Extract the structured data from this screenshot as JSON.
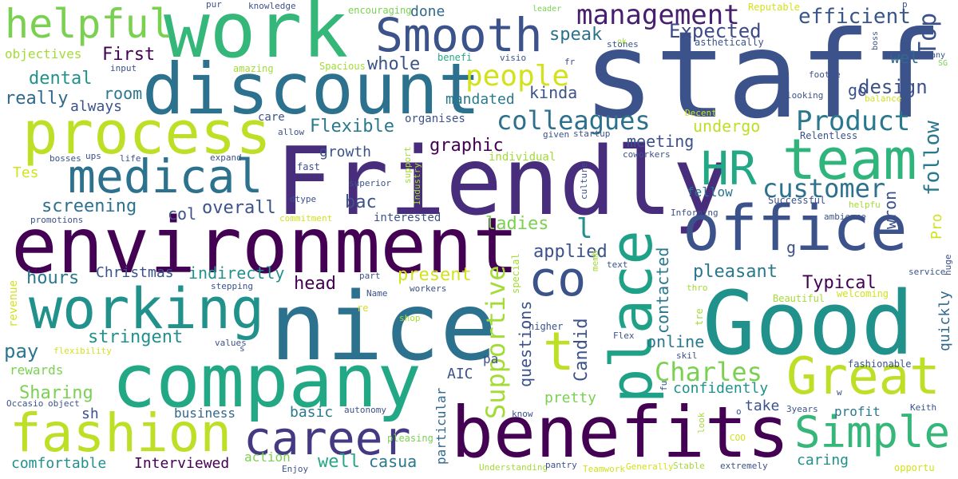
{
  "words": [
    {
      "text": "staff",
      "color": "#3b528b"
    },
    {
      "text": "Friendly",
      "color": "#472d7b"
    },
    {
      "text": "nice",
      "color": "#2c728e"
    },
    {
      "text": "environment",
      "color": "#440154"
    },
    {
      "text": "company",
      "color": "#22a884"
    },
    {
      "text": "work",
      "color": "#35b779"
    },
    {
      "text": "Good",
      "color": "#21918c"
    },
    {
      "text": "discount",
      "color": "#2c728e"
    },
    {
      "text": "benefits",
      "color": "#440154"
    },
    {
      "text": "office",
      "color": "#3b528b"
    },
    {
      "text": "process",
      "color": "#bddf26"
    },
    {
      "text": "fashion",
      "color": "#bddf26"
    },
    {
      "text": "working",
      "color": "#21918c"
    },
    {
      "text": "place",
      "color": "#1fa188"
    },
    {
      "text": "team",
      "color": "#2fb47c"
    },
    {
      "text": "Great",
      "color": "#bddf26"
    },
    {
      "text": "Smooth",
      "color": "#3b528b"
    },
    {
      "text": "career",
      "color": "#443a83"
    },
    {
      "text": "medical",
      "color": "#2c728e"
    },
    {
      "text": "co",
      "color": "#3b528b"
    },
    {
      "text": "Simple",
      "color": "#35b779"
    },
    {
      "text": "helpful",
      "color": "#7ad151"
    },
    {
      "text": "HR",
      "color": "#22a884"
    },
    {
      "text": "t",
      "color": "#bddf26"
    },
    {
      "text": "management",
      "color": "#481f70"
    },
    {
      "text": "Supportive",
      "color": "#a5db36"
    },
    {
      "text": "colleagues",
      "color": "#2d708e"
    },
    {
      "text": "Product",
      "color": "#2a788e"
    },
    {
      "text": "customer",
      "color": "#2c728e"
    },
    {
      "text": "people",
      "color": "#d2e21b"
    },
    {
      "text": "Charles",
      "color": "#7ad151"
    },
    {
      "text": "Top",
      "color": "#3b528b"
    },
    {
      "text": "follow",
      "color": "#2a788e"
    },
    {
      "text": "efficient",
      "color": "#39568c"
    },
    {
      "text": "Expected",
      "color": "#3e4989"
    },
    {
      "text": "speak",
      "color": "#2c728e"
    },
    {
      "text": "First",
      "color": "#440154"
    },
    {
      "text": "dental",
      "color": "#21918c"
    },
    {
      "text": "really",
      "color": "#31688e"
    },
    {
      "text": "room",
      "color": "#2a788e"
    },
    {
      "text": "always",
      "color": "#3b528b"
    },
    {
      "text": "objectives",
      "color": "#a5db36"
    },
    {
      "text": "whole",
      "color": "#3b528b"
    },
    {
      "text": "design",
      "color": "#3b528b"
    },
    {
      "text": "kinda",
      "color": "#3b528b"
    },
    {
      "text": "mandated",
      "color": "#2a788e"
    },
    {
      "text": "go",
      "color": "#3b528b"
    },
    {
      "text": "Flexible",
      "color": "#2a788e"
    },
    {
      "text": "graphic",
      "color": "#440154"
    },
    {
      "text": "meeting",
      "color": "#3b528b"
    },
    {
      "text": "undergo",
      "color": "#bddf26"
    },
    {
      "text": "growth",
      "color": "#3b528b"
    },
    {
      "text": "screening",
      "color": "#2c728e"
    },
    {
      "text": "overall",
      "color": "#3b528b"
    },
    {
      "text": "col",
      "color": "#3b528b"
    },
    {
      "text": "fellow",
      "color": "#2c728e"
    },
    {
      "text": "Tes",
      "color": "#d2e21b"
    },
    {
      "text": "bac",
      "color": "#3b528b"
    },
    {
      "text": "ladies",
      "color": "#7ad151"
    },
    {
      "text": "applied",
      "color": "#3b528b"
    },
    {
      "text": "Pro",
      "color": "#d2e21b"
    },
    {
      "text": "wron",
      "color": "#3b528b"
    },
    {
      "text": "pleasant",
      "color": "#2a788e"
    },
    {
      "text": "Typical",
      "color": "#440154"
    },
    {
      "text": "present",
      "color": "#d2e21b"
    },
    {
      "text": "head",
      "color": "#440154"
    },
    {
      "text": "indirectly",
      "color": "#21918c"
    },
    {
      "text": "hours",
      "color": "#2a788e"
    },
    {
      "text": "Christmas",
      "color": "#3b528b"
    },
    {
      "text": "stringent",
      "color": "#21918c"
    },
    {
      "text": "pay",
      "color": "#2a788e"
    },
    {
      "text": "Candid",
      "color": "#3b528b"
    },
    {
      "text": "contacted",
      "color": "#2a788e"
    },
    {
      "text": "quickly",
      "color": "#31688e"
    },
    {
      "text": "online",
      "color": "#2a788e"
    },
    {
      "text": "questions",
      "color": "#3b528b"
    },
    {
      "text": "confidently",
      "color": "#21918c"
    },
    {
      "text": "pretty",
      "color": "#7ad151"
    },
    {
      "text": "take",
      "color": "#3b528b"
    },
    {
      "text": "profit",
      "color": "#2a788e"
    },
    {
      "text": "Sharing",
      "color": "#7ad151"
    },
    {
      "text": "basic",
      "color": "#2a788e"
    },
    {
      "text": "business",
      "color": "#31688e"
    },
    {
      "text": "sh",
      "color": "#3b528b"
    },
    {
      "text": "AIC",
      "color": "#3b528b"
    },
    {
      "text": "pa",
      "color": "#3b528b"
    },
    {
      "text": "rewards",
      "color": "#7ad151"
    },
    {
      "text": "comfortable",
      "color": "#21918c"
    },
    {
      "text": "Interviewed",
      "color": "#440154"
    },
    {
      "text": "well",
      "color": "#22a884"
    },
    {
      "text": "casua",
      "color": "#2a788e"
    },
    {
      "text": "action",
      "color": "#7ad151"
    },
    {
      "text": "caring",
      "color": "#21918c"
    },
    {
      "text": "done",
      "color": "#31688e"
    },
    {
      "text": "encouraging",
      "color": "#7ad151"
    },
    {
      "text": "knowledge",
      "color": "#3b528b"
    },
    {
      "text": "pur",
      "color": "#3b528b"
    },
    {
      "text": "leader",
      "color": "#7ad151"
    },
    {
      "text": "Reputable",
      "color": "#d2e21b"
    },
    {
      "text": "wel",
      "color": "#31688e"
    },
    {
      "text": "many",
      "color": "#3b528b"
    },
    {
      "text": "boss",
      "color": "#3b528b"
    },
    {
      "text": "SG",
      "color": "#7ad151"
    },
    {
      "text": "asthetically",
      "color": "#3b528b"
    },
    {
      "text": "benefi",
      "color": "#22a884"
    },
    {
      "text": "visio",
      "color": "#3b528b"
    },
    {
      "text": "stones",
      "color": "#3b528b"
    },
    {
      "text": "fr",
      "color": "#3b528b"
    },
    {
      "text": "footwe",
      "color": "#3b528b"
    },
    {
      "text": "looking",
      "color": "#3b528b"
    },
    {
      "text": "balance",
      "color": "#d2e21b"
    },
    {
      "text": "Spacious",
      "color": "#a5db36"
    },
    {
      "text": "amazing",
      "color": "#a5db36"
    },
    {
      "text": "input",
      "color": "#3b528b"
    },
    {
      "text": "ok",
      "color": "#a5db36"
    },
    {
      "text": "organises",
      "color": "#3b528b"
    },
    {
      "text": "care",
      "color": "#3b528b"
    },
    {
      "text": "allow",
      "color": "#3b528b"
    },
    {
      "text": "Decent",
      "color": "#d2e21b"
    },
    {
      "text": "Relentless",
      "color": "#3b528b"
    },
    {
      "text": "given",
      "color": "#3b528b"
    },
    {
      "text": "startup",
      "color": "#3b528b"
    },
    {
      "text": "individual",
      "color": "#a5db36"
    },
    {
      "text": "coworkers",
      "color": "#3b528b"
    },
    {
      "text": "life",
      "color": "#3b528b"
    },
    {
      "text": "ups",
      "color": "#3b528b"
    },
    {
      "text": "bosses",
      "color": "#3b528b"
    },
    {
      "text": "expand",
      "color": "#3b528b"
    },
    {
      "text": "fast",
      "color": "#3b528b"
    },
    {
      "text": "support",
      "color": "#a5db36"
    },
    {
      "text": "superior",
      "color": "#3b528b"
    },
    {
      "text": "Industry",
      "color": "#a5db36"
    },
    {
      "text": "culture",
      "color": "#3b528b"
    },
    {
      "text": "dtype",
      "color": "#3b528b"
    },
    {
      "text": "interested",
      "color": "#3b528b"
    },
    {
      "text": "commitment",
      "color": "#d2e21b"
    },
    {
      "text": "promotions",
      "color": "#3b528b"
    },
    {
      "text": "Informing",
      "color": "#3b528b"
    },
    {
      "text": "Successful",
      "color": "#3b528b"
    },
    {
      "text": "helpfu",
      "color": "#a5db36"
    },
    {
      "text": "ambience",
      "color": "#3b528b"
    },
    {
      "text": "l",
      "color": "#21918c"
    },
    {
      "text": "g",
      "color": "#3b528b"
    },
    {
      "text": "memb",
      "color": "#a5db36"
    },
    {
      "text": "text",
      "color": "#3b528b"
    },
    {
      "text": "special",
      "color": "#a5db36"
    },
    {
      "text": "thro",
      "color": "#a5db36"
    },
    {
      "text": "service",
      "color": "#3b528b"
    },
    {
      "text": "huge",
      "color": "#3b528b"
    },
    {
      "text": "welcoming",
      "color": "#d2e21b"
    },
    {
      "text": "Beautiful",
      "color": "#a5db36"
    },
    {
      "text": "tre",
      "color": "#a5db36"
    },
    {
      "text": "higher",
      "color": "#3b528b"
    },
    {
      "text": "Flex",
      "color": "#3b528b"
    },
    {
      "text": "skil",
      "color": "#3b528b"
    },
    {
      "text": "fashionable",
      "color": "#3b528b"
    },
    {
      "text": "revenue",
      "color": "#d2e21b"
    },
    {
      "text": "stepping",
      "color": "#3b528b"
    },
    {
      "text": "part",
      "color": "#3b528b"
    },
    {
      "text": "workers",
      "color": "#3b528b"
    },
    {
      "text": "Name",
      "color": "#3b528b"
    },
    {
      "text": "re",
      "color": "#d2e21b"
    },
    {
      "text": "shop",
      "color": "#a5db36"
    },
    {
      "text": "values",
      "color": "#3b528b"
    },
    {
      "text": "s",
      "color": "#3b528b"
    },
    {
      "text": "flexibility",
      "color": "#d2e21b"
    },
    {
      "text": "Occasio",
      "color": "#3b528b"
    },
    {
      "text": "object",
      "color": "#3b528b"
    },
    {
      "text": "autonomy",
      "color": "#3b528b"
    },
    {
      "text": "particular",
      "color": "#31688e"
    },
    {
      "text": "know",
      "color": "#3b528b"
    },
    {
      "text": "look",
      "color": "#a5db36"
    },
    {
      "text": "COO",
      "color": "#d2e21b"
    },
    {
      "text": "fu",
      "color": "#3b528b"
    },
    {
      "text": "w",
      "color": "#3b528b"
    },
    {
      "text": "3years",
      "color": "#3b528b"
    },
    {
      "text": "Keith",
      "color": "#3b528b"
    },
    {
      "text": "o",
      "color": "#3b528b"
    },
    {
      "text": "pleasing",
      "color": "#7ad151"
    },
    {
      "text": "Understanding",
      "color": "#a5db36"
    },
    {
      "text": "Enjoy",
      "color": "#3b528b"
    },
    {
      "text": "pantry",
      "color": "#3b528b"
    },
    {
      "text": "Teamwork",
      "color": "#d2e21b"
    },
    {
      "text": "Generally",
      "color": "#d2e21b"
    },
    {
      "text": "Stable",
      "color": "#a5db36"
    },
    {
      "text": "extremely",
      "color": "#3b528b"
    },
    {
      "text": "opportu",
      "color": "#d2e21b"
    },
    {
      "text": "p",
      "color": "#3b528b"
    }
  ]
}
